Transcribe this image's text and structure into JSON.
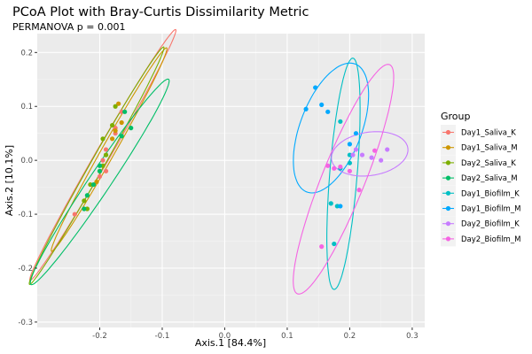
{
  "chart_data": {
    "type": "scatter",
    "title": "PCoA Plot with Bray-Curtis Dissimilarity Metric",
    "subtitle": "PERMANOVA p = 0.001",
    "xlabel": "Axis.1  [84.4%]",
    "ylabel": "Axis.2  [10.1%]",
    "xlim": [
      -0.3,
      0.32
    ],
    "ylim": [
      -0.31,
      0.235
    ],
    "xticks": [
      -0.2,
      -0.1,
      0.0,
      0.1,
      0.2,
      0.3
    ],
    "xtick_labels": [
      "-0.2",
      "-0.1",
      "0.0",
      "0.1",
      "0.2",
      "0.3"
    ],
    "yticks": [
      -0.3,
      -0.2,
      -0.1,
      0.0,
      0.1,
      0.2
    ],
    "ytick_labels": [
      "-0.3",
      "-0.2",
      "-0.1",
      "0.0",
      "0.1",
      "0.2"
    ],
    "grid": true,
    "legend": {
      "title": "Group",
      "position": "right"
    },
    "series": [
      {
        "name": "Day1_Saliva_K",
        "color": "#F8766D",
        "points": [
          [
            -0.24,
            -0.1
          ],
          [
            -0.19,
            0.02
          ],
          [
            -0.175,
            0.05
          ],
          [
            -0.165,
            0.09
          ],
          [
            -0.175,
            0.06
          ],
          [
            -0.195,
            0.0
          ],
          [
            -0.19,
            -0.02
          ],
          [
            -0.2,
            -0.03
          ]
        ],
        "ellipse": {
          "cx": -0.195,
          "cy": 0.01,
          "a": 0.26,
          "b": 0.012,
          "angle_deg": 63.4
        }
      },
      {
        "name": "Day1_Saliva_M",
        "color": "#CD9600",
        "points": [
          [
            -0.17,
            0.105
          ],
          [
            -0.165,
            0.07
          ],
          [
            -0.175,
            0.055
          ],
          [
            -0.18,
            0.04
          ],
          [
            -0.19,
            0.01
          ],
          [
            -0.2,
            -0.02
          ],
          [
            -0.205,
            -0.04
          ]
        ],
        "ellipse": {
          "cx": -0.185,
          "cy": 0.02,
          "a": 0.21,
          "b": 0.011,
          "angle_deg": 64
        }
      },
      {
        "name": "Day2_Saliva_K",
        "color": "#7CAE00",
        "points": [
          [
            -0.175,
            0.1
          ],
          [
            -0.18,
            0.065
          ],
          [
            -0.195,
            0.04
          ],
          [
            -0.19,
            0.01
          ],
          [
            -0.195,
            -0.01
          ],
          [
            -0.215,
            -0.045
          ],
          [
            -0.225,
            -0.075
          ],
          [
            -0.22,
            -0.09
          ]
        ],
        "ellipse": {
          "cx": -0.205,
          "cy": -0.01,
          "a": 0.245,
          "b": 0.011,
          "angle_deg": 64
        }
      },
      {
        "name": "Day2_Saliva_M",
        "color": "#00BE67",
        "points": [
          [
            -0.16,
            0.09
          ],
          [
            -0.15,
            0.06
          ],
          [
            -0.165,
            0.045
          ],
          [
            -0.2,
            -0.01
          ],
          [
            -0.21,
            -0.045
          ],
          [
            -0.22,
            -0.065
          ],
          [
            -0.225,
            -0.09
          ],
          [
            -0.2,
            -0.02
          ]
        ],
        "ellipse": {
          "cx": -0.2,
          "cy": -0.04,
          "a": 0.22,
          "b": 0.018,
          "angle_deg": 60
        }
      },
      {
        "name": "Day1_Biofilm_K",
        "color": "#00BFC4",
        "points": [
          [
            0.185,
            0.072
          ],
          [
            0.2,
            0.01
          ],
          [
            0.185,
            -0.015
          ],
          [
            0.17,
            -0.08
          ],
          [
            0.175,
            -0.155
          ],
          [
            0.18,
            -0.085
          ],
          [
            0.2,
            -0.005
          ]
        ],
        "ellipse": {
          "cx": 0.19,
          "cy": -0.025,
          "a": 0.215,
          "b": 0.022,
          "angle_deg": 86
        }
      },
      {
        "name": "Day1_Biofilm_M",
        "color": "#00A9FF",
        "points": [
          [
            0.145,
            0.135
          ],
          [
            0.155,
            0.103
          ],
          [
            0.13,
            0.095
          ],
          [
            0.165,
            0.09
          ],
          [
            0.2,
            0.03
          ],
          [
            0.21,
            0.05
          ],
          [
            0.185,
            -0.085
          ]
        ],
        "ellipse": {
          "cx": 0.17,
          "cy": 0.06,
          "a": 0.125,
          "b": 0.05,
          "angle_deg": 73
        }
      },
      {
        "name": "Day2_Biofilm_K",
        "color": "#C77CFF",
        "points": [
          [
            0.205,
            0.01
          ],
          [
            0.22,
            0.01
          ],
          [
            0.235,
            0.005
          ],
          [
            0.25,
            0.0
          ],
          [
            0.26,
            0.02
          ],
          [
            0.21,
            0.02
          ]
        ],
        "ellipse": {
          "cx": 0.232,
          "cy": 0.012,
          "a": 0.062,
          "b": 0.04,
          "angle_deg": 12
        }
      },
      {
        "name": "Day2_Biofilm_M",
        "color": "#F564E3",
        "points": [
          [
            0.165,
            -0.01
          ],
          [
            0.175,
            -0.015
          ],
          [
            0.185,
            -0.012
          ],
          [
            0.24,
            0.018
          ],
          [
            0.215,
            -0.055
          ],
          [
            0.155,
            -0.16
          ],
          [
            0.2,
            -0.02
          ]
        ],
        "ellipse": {
          "cx": 0.19,
          "cy": -0.035,
          "a": 0.225,
          "b": 0.035,
          "angle_deg": 71
        }
      }
    ]
  }
}
